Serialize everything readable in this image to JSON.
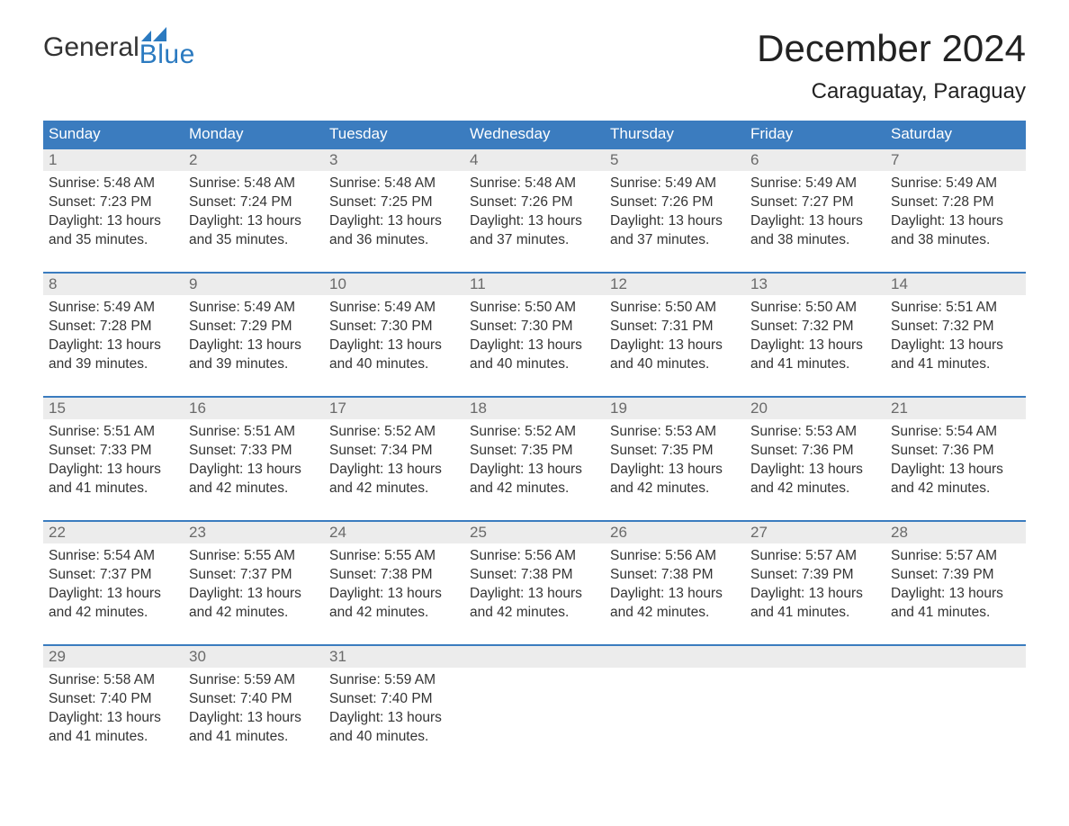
{
  "brand": {
    "line1": "General",
    "line2": "Blue",
    "accent": "#2b7ac0"
  },
  "header": {
    "title": "December 2024",
    "location": "Caraguatay, Paraguay"
  },
  "colors": {
    "header_bg": "#3b7cbf",
    "header_fg": "#ffffff",
    "daynum_bg": "#ececec",
    "daynum_fg": "#6a6a6a",
    "body_fg": "#333333",
    "page_bg": "#ffffff",
    "week_border": "#3b7cbf"
  },
  "typography": {
    "title_fontsize": 42,
    "location_fontsize": 24,
    "weekday_fontsize": 17,
    "daynum_fontsize": 17,
    "body_fontsize": 15.5
  },
  "weekdays": [
    "Sunday",
    "Monday",
    "Tuesday",
    "Wednesday",
    "Thursday",
    "Friday",
    "Saturday"
  ],
  "weeks": [
    [
      {
        "n": "1",
        "sunrise": "5:48 AM",
        "sunset": "7:23 PM",
        "dl_h": "13",
        "dl_m": "35"
      },
      {
        "n": "2",
        "sunrise": "5:48 AM",
        "sunset": "7:24 PM",
        "dl_h": "13",
        "dl_m": "35"
      },
      {
        "n": "3",
        "sunrise": "5:48 AM",
        "sunset": "7:25 PM",
        "dl_h": "13",
        "dl_m": "36"
      },
      {
        "n": "4",
        "sunrise": "5:48 AM",
        "sunset": "7:26 PM",
        "dl_h": "13",
        "dl_m": "37"
      },
      {
        "n": "5",
        "sunrise": "5:49 AM",
        "sunset": "7:26 PM",
        "dl_h": "13",
        "dl_m": "37"
      },
      {
        "n": "6",
        "sunrise": "5:49 AM",
        "sunset": "7:27 PM",
        "dl_h": "13",
        "dl_m": "38"
      },
      {
        "n": "7",
        "sunrise": "5:49 AM",
        "sunset": "7:28 PM",
        "dl_h": "13",
        "dl_m": "38"
      }
    ],
    [
      {
        "n": "8",
        "sunrise": "5:49 AM",
        "sunset": "7:28 PM",
        "dl_h": "13",
        "dl_m": "39"
      },
      {
        "n": "9",
        "sunrise": "5:49 AM",
        "sunset": "7:29 PM",
        "dl_h": "13",
        "dl_m": "39"
      },
      {
        "n": "10",
        "sunrise": "5:49 AM",
        "sunset": "7:30 PM",
        "dl_h": "13",
        "dl_m": "40"
      },
      {
        "n": "11",
        "sunrise": "5:50 AM",
        "sunset": "7:30 PM",
        "dl_h": "13",
        "dl_m": "40"
      },
      {
        "n": "12",
        "sunrise": "5:50 AM",
        "sunset": "7:31 PM",
        "dl_h": "13",
        "dl_m": "40"
      },
      {
        "n": "13",
        "sunrise": "5:50 AM",
        "sunset": "7:32 PM",
        "dl_h": "13",
        "dl_m": "41"
      },
      {
        "n": "14",
        "sunrise": "5:51 AM",
        "sunset": "7:32 PM",
        "dl_h": "13",
        "dl_m": "41"
      }
    ],
    [
      {
        "n": "15",
        "sunrise": "5:51 AM",
        "sunset": "7:33 PM",
        "dl_h": "13",
        "dl_m": "41"
      },
      {
        "n": "16",
        "sunrise": "5:51 AM",
        "sunset": "7:33 PM",
        "dl_h": "13",
        "dl_m": "42"
      },
      {
        "n": "17",
        "sunrise": "5:52 AM",
        "sunset": "7:34 PM",
        "dl_h": "13",
        "dl_m": "42"
      },
      {
        "n": "18",
        "sunrise": "5:52 AM",
        "sunset": "7:35 PM",
        "dl_h": "13",
        "dl_m": "42"
      },
      {
        "n": "19",
        "sunrise": "5:53 AM",
        "sunset": "7:35 PM",
        "dl_h": "13",
        "dl_m": "42"
      },
      {
        "n": "20",
        "sunrise": "5:53 AM",
        "sunset": "7:36 PM",
        "dl_h": "13",
        "dl_m": "42"
      },
      {
        "n": "21",
        "sunrise": "5:54 AM",
        "sunset": "7:36 PM",
        "dl_h": "13",
        "dl_m": "42"
      }
    ],
    [
      {
        "n": "22",
        "sunrise": "5:54 AM",
        "sunset": "7:37 PM",
        "dl_h": "13",
        "dl_m": "42"
      },
      {
        "n": "23",
        "sunrise": "5:55 AM",
        "sunset": "7:37 PM",
        "dl_h": "13",
        "dl_m": "42"
      },
      {
        "n": "24",
        "sunrise": "5:55 AM",
        "sunset": "7:38 PM",
        "dl_h": "13",
        "dl_m": "42"
      },
      {
        "n": "25",
        "sunrise": "5:56 AM",
        "sunset": "7:38 PM",
        "dl_h": "13",
        "dl_m": "42"
      },
      {
        "n": "26",
        "sunrise": "5:56 AM",
        "sunset": "7:38 PM",
        "dl_h": "13",
        "dl_m": "42"
      },
      {
        "n": "27",
        "sunrise": "5:57 AM",
        "sunset": "7:39 PM",
        "dl_h": "13",
        "dl_m": "41"
      },
      {
        "n": "28",
        "sunrise": "5:57 AM",
        "sunset": "7:39 PM",
        "dl_h": "13",
        "dl_m": "41"
      }
    ],
    [
      {
        "n": "29",
        "sunrise": "5:58 AM",
        "sunset": "7:40 PM",
        "dl_h": "13",
        "dl_m": "41"
      },
      {
        "n": "30",
        "sunrise": "5:59 AM",
        "sunset": "7:40 PM",
        "dl_h": "13",
        "dl_m": "41"
      },
      {
        "n": "31",
        "sunrise": "5:59 AM",
        "sunset": "7:40 PM",
        "dl_h": "13",
        "dl_m": "40"
      },
      null,
      null,
      null,
      null
    ]
  ],
  "labels": {
    "sunrise": "Sunrise: ",
    "sunset": "Sunset: ",
    "daylight_a": "Daylight: ",
    "daylight_b": " hours and ",
    "daylight_c": " minutes."
  }
}
